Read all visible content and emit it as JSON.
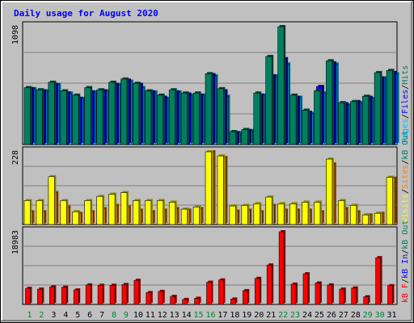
{
  "chart_data": [
    {
      "type": "bar",
      "title": "Daily usage for August 2020",
      "ylim": [
        0,
        1098
      ],
      "tick_label": "1098",
      "categories": [
        "1",
        "2",
        "3",
        "4",
        "5",
        "6",
        "7",
        "8",
        "9",
        "10",
        "11",
        "12",
        "13",
        "14",
        "15",
        "16",
        "17",
        "18",
        "19",
        "20",
        "21",
        "22",
        "23",
        "24",
        "25",
        "26",
        "27",
        "28",
        "29",
        "30",
        "31"
      ],
      "series": [
        {
          "name": "Pages",
          "color": "#00c0ff",
          "values": [
            520,
            500,
            560,
            480,
            430,
            490,
            500,
            560,
            590,
            530,
            490,
            430,
            490,
            460,
            460,
            640,
            450,
            110,
            130,
            460,
            640,
            750,
            440,
            290,
            480,
            750,
            370,
            390,
            430,
            620,
            660
          ]
        },
        {
          "name": "Files",
          "color": "#0000ff",
          "values": [
            520,
            500,
            560,
            480,
            430,
            490,
            500,
            560,
            600,
            560,
            490,
            440,
            490,
            470,
            460,
            650,
            500,
            110,
            130,
            460,
            640,
            800,
            440,
            300,
            540,
            760,
            380,
            400,
            440,
            620,
            670
          ]
        },
        {
          "name": "Hits",
          "color": "#008060",
          "values": [
            530,
            510,
            580,
            500,
            460,
            530,
            510,
            580,
            610,
            570,
            500,
            460,
            510,
            480,
            480,
            660,
            520,
            120,
            140,
            480,
            820,
            1098,
            460,
            320,
            500,
            780,
            390,
            400,
            450,
            670,
            690
          ]
        }
      ],
      "legend_text": [
        "Pages",
        "/",
        "Files",
        "/",
        "Hits"
      ],
      "legend_colors": [
        "#00c0ff",
        "#000000",
        "#0000ff",
        "#000000",
        "#008060"
      ]
    },
    {
      "type": "bar",
      "ylim": [
        0,
        228
      ],
      "tick_label": "228",
      "categories": [
        "1",
        "2",
        "3",
        "4",
        "5",
        "6",
        "7",
        "8",
        "9",
        "10",
        "11",
        "12",
        "13",
        "14",
        "15",
        "16",
        "17",
        "18",
        "19",
        "20",
        "21",
        "22",
        "23",
        "24",
        "25",
        "26",
        "27",
        "28",
        "29",
        "30",
        "31"
      ],
      "series": [
        {
          "name": "Sites",
          "color": "#ff8000",
          "values": [
            40,
            40,
            100,
            55,
            35,
            40,
            50,
            60,
            55,
            45,
            40,
            45,
            50,
            45,
            50,
            228,
            210,
            42,
            45,
            40,
            60,
            45,
            45,
            45,
            40,
            190,
            50,
            40,
            30,
            35,
            145
          ]
        },
        {
          "name": "Visits",
          "color": "#ffff00",
          "values": [
            75,
            75,
            150,
            75,
            40,
            75,
            88,
            95,
            100,
            75,
            75,
            75,
            70,
            48,
            55,
            228,
            215,
            58,
            60,
            65,
            86,
            65,
            65,
            70,
            70,
            205,
            75,
            60,
            30,
            35,
            148
          ]
        }
      ],
      "legend_text": [
        "Visits",
        "/",
        "Sites",
        "/",
        "kB Out"
      ],
      "legend_colors": [
        "#ffff00",
        "#000000",
        "#ff8000",
        "#000000",
        "#008060"
      ]
    },
    {
      "type": "bar",
      "ylim": [
        0,
        18983
      ],
      "tick_label": "18983",
      "categories": [
        "1",
        "2",
        "3",
        "4",
        "5",
        "6",
        "7",
        "8",
        "9",
        "10",
        "11",
        "12",
        "13",
        "14",
        "15",
        "16",
        "17",
        "18",
        "19",
        "20",
        "21",
        "22",
        "23",
        "24",
        "25",
        "26",
        "27",
        "28",
        "29",
        "30",
        "31"
      ],
      "series": [
        {
          "name": "kB F",
          "color": "#ff0000",
          "values": [
            4200,
            4000,
            4600,
            4500,
            3800,
            5100,
            5000,
            5000,
            5200,
            6300,
            3100,
            3400,
            2100,
            1300,
            1600,
            5800,
            6400,
            1400,
            3600,
            6800,
            10300,
            18983,
            5300,
            8000,
            5600,
            5100,
            4000,
            4300,
            2000,
            12200,
            4900
          ]
        }
      ],
      "legend_text": [
        "kB F",
        "/",
        "kB In",
        "/",
        "kB Out"
      ],
      "legend_colors": [
        "#ff0000",
        "#000000",
        "#0000ff",
        "#000000",
        "#008060"
      ]
    }
  ],
  "weekend_days": [
    1,
    2,
    8,
    9,
    15,
    16,
    22,
    23,
    29,
    30
  ],
  "weekend_color": "#008040",
  "weekday_color": "#000000"
}
